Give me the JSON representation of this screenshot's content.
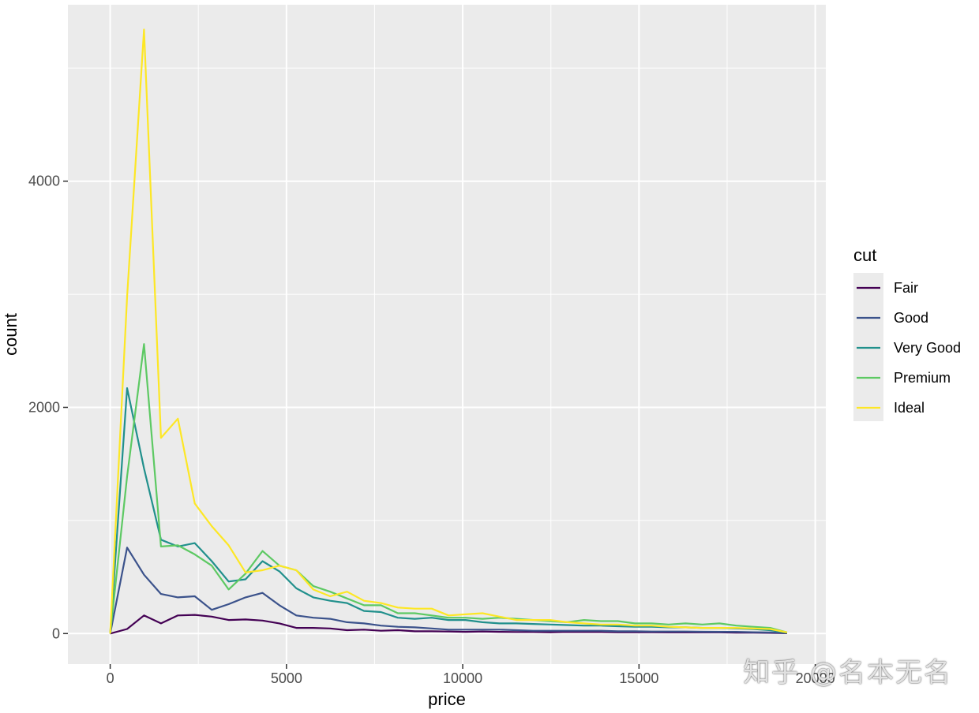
{
  "chart_data": {
    "type": "line",
    "xlabel": "price",
    "ylabel": "count",
    "xlim": [
      -1200,
      20300
    ],
    "ylim": [
      -270,
      5560
    ],
    "x_ticks": [
      0,
      5000,
      10000,
      15000,
      20000
    ],
    "x_tick_labels": [
      "0",
      "5000",
      "10000",
      "15000",
      "20000"
    ],
    "y_ticks": [
      0,
      2000,
      4000
    ],
    "y_tick_labels": [
      "0",
      "2000",
      "4000"
    ],
    "grid": true,
    "legend": {
      "title": "cut",
      "position": "right"
    },
    "x": [
      0,
      480,
      960,
      1440,
      1920,
      2400,
      2880,
      3360,
      3840,
      4320,
      4800,
      5280,
      5760,
      6240,
      6720,
      7200,
      7680,
      8160,
      8640,
      9120,
      9600,
      10080,
      10560,
      11040,
      11520,
      12000,
      12480,
      12960,
      13440,
      13920,
      14400,
      14880,
      15360,
      15840,
      16320,
      16800,
      17280,
      17760,
      18240,
      18720,
      19200
    ],
    "series": [
      {
        "name": "Fair",
        "color": "#440154",
        "values": [
          0,
          40,
          160,
          90,
          160,
          165,
          150,
          120,
          125,
          115,
          90,
          50,
          50,
          45,
          30,
          35,
          25,
          30,
          20,
          20,
          18,
          15,
          18,
          15,
          14,
          14,
          12,
          15,
          14,
          14,
          12,
          12,
          12,
          10,
          10,
          10,
          10,
          8,
          8,
          6,
          3
        ]
      },
      {
        "name": "Good",
        "color": "#3b528b",
        "values": [
          0,
          760,
          520,
          350,
          320,
          330,
          210,
          260,
          320,
          360,
          250,
          160,
          140,
          130,
          100,
          90,
          70,
          60,
          55,
          45,
          35,
          35,
          35,
          35,
          30,
          25,
          25,
          25,
          25,
          25,
          20,
          20,
          18,
          18,
          18,
          16,
          15,
          15,
          12,
          10,
          4
        ]
      },
      {
        "name": "Very Good",
        "color": "#21908c",
        "values": [
          0,
          2170,
          1460,
          830,
          770,
          800,
          640,
          460,
          480,
          640,
          550,
          400,
          320,
          290,
          270,
          200,
          190,
          140,
          130,
          140,
          120,
          120,
          100,
          90,
          90,
          85,
          80,
          75,
          70,
          70,
          65,
          60,
          60,
          55,
          55,
          50,
          50,
          45,
          40,
          30,
          8
        ]
      },
      {
        "name": "Premium",
        "color": "#5dc963",
        "values": [
          0,
          1390,
          2560,
          770,
          780,
          700,
          600,
          390,
          530,
          730,
          600,
          560,
          420,
          370,
          310,
          250,
          250,
          180,
          180,
          160,
          140,
          140,
          130,
          140,
          130,
          120,
          110,
          100,
          120,
          110,
          110,
          90,
          90,
          80,
          90,
          80,
          90,
          70,
          60,
          50,
          10
        ]
      },
      {
        "name": "Ideal",
        "color": "#fde725",
        "values": [
          0,
          2980,
          5340,
          1730,
          1900,
          1150,
          950,
          780,
          540,
          560,
          600,
          560,
          390,
          330,
          370,
          290,
          270,
          230,
          220,
          220,
          160,
          170,
          180,
          150,
          120,
          120,
          120,
          100,
          90,
          80,
          80,
          70,
          70,
          60,
          55,
          50,
          50,
          50,
          45,
          40,
          10
        ]
      }
    ]
  },
  "watermark": "知乎 @名本无名"
}
